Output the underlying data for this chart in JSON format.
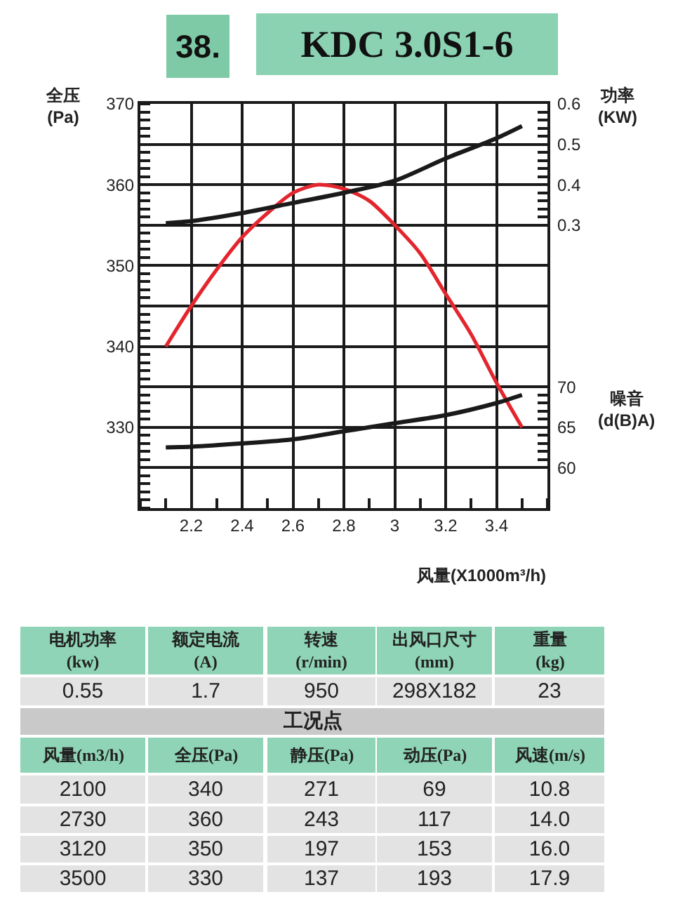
{
  "chart_data": {
    "type": "line",
    "title": "KDC 3.0S1-6",
    "xlabel": "风量(X1000m³/h)",
    "ylabel": "全压(Pa)",
    "y2label": "功率(KW)",
    "y3label": "噪音(d(B)A)",
    "xlim": [
      2.0,
      3.6
    ],
    "xticks": [
      2.2,
      2.4,
      2.6,
      2.8,
      3,
      3.2,
      3.4
    ],
    "ylim": [
      320,
      370
    ],
    "yticks": [
      {
        "value": 325,
        "label": null
      },
      330,
      {
        "value": 335,
        "label": null
      },
      340,
      {
        "value": 345,
        "label": null
      },
      350,
      {
        "value": 355,
        "label": null
      },
      360,
      {
        "value": 365,
        "label": null
      },
      370
    ],
    "y2lim": [
      -0.4,
      0.6
    ],
    "y2ticks": [
      0.3,
      {
        "value": 0.32,
        "label": null
      },
      {
        "value": 0.34,
        "label": null
      },
      {
        "value": 0.36,
        "label": null
      },
      {
        "value": 0.38,
        "label": null
      },
      0.4,
      {
        "value": 0.42,
        "label": null
      },
      {
        "value": 0.44,
        "label": null
      },
      {
        "value": 0.46,
        "label": null
      },
      {
        "value": 0.48,
        "label": null
      },
      0.5,
      {
        "value": 0.52,
        "label": null
      },
      {
        "value": 0.54,
        "label": null
      },
      {
        "value": 0.56,
        "label": null
      },
      {
        "value": 0.58,
        "label": null
      },
      0.6
    ],
    "y3lim": [
      55,
      105
    ],
    "y3ticks": [
      60,
      {
        "value": 61,
        "label": null
      },
      {
        "value": 62,
        "label": null
      },
      {
        "value": 63,
        "label": null
      },
      {
        "value": 64,
        "label": null
      },
      65,
      {
        "value": 66,
        "label": null
      },
      {
        "value": 67,
        "label": null
      },
      {
        "value": 68,
        "label": null
      },
      {
        "value": 69,
        "label": null
      },
      70
    ],
    "grid": true,
    "line_style": "solid",
    "series": [
      {
        "color": "#e3262e",
        "x": [
          2.1,
          2.2,
          2.3,
          2.4,
          2.5,
          2.6,
          2.7,
          2.8,
          2.9,
          3.0,
          3.1,
          3.2,
          3.3,
          3.4,
          3.5
        ],
        "values": [
          340,
          345,
          349.5,
          353.5,
          356.5,
          359,
          360,
          359.5,
          358,
          355,
          351.5,
          346.5,
          341.5,
          335.5,
          330
        ]
      },
      {
        "color": "#1a1a1a",
        "axis": "y2",
        "x": [
          2.1,
          2.2,
          2.4,
          2.6,
          2.8,
          3.0,
          3.2,
          3.4,
          3.5
        ],
        "values": [
          0.305,
          0.31,
          0.33,
          0.355,
          0.38,
          0.41,
          0.465,
          0.515,
          0.545
        ]
      },
      {
        "color": "#1a1a1a",
        "axis": "y3",
        "x": [
          2.1,
          2.2,
          2.4,
          2.6,
          2.8,
          3.0,
          3.2,
          3.4,
          3.5
        ],
        "values": [
          62.5,
          62.6,
          63,
          63.5,
          64.5,
          65.5,
          66.5,
          68,
          69
        ]
      }
    ],
    "annotations": [
      "38.",
      "电机功率(kw)",
      "额定电流(A)",
      "转速(r/min)",
      "出风口尺寸(mm)",
      "重量(kg)",
      "0.55",
      "1.7",
      "950",
      "298X182",
      "23",
      "工况点",
      "风量(m3/h)",
      "全压(Pa)",
      "静压(Pa)",
      "动压(Pa)",
      "风速(m/s)",
      "2100",
      "340",
      "271",
      "69",
      "10.8",
      "2730",
      "360",
      "243",
      "117",
      "14.0",
      "3120",
      "350",
      "197",
      "153",
      "16.0",
      "3500",
      "330",
      "137",
      "193",
      "17.9"
    ]
  }
}
